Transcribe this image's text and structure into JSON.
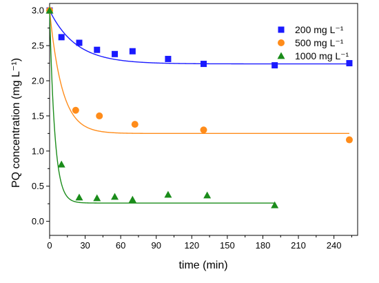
{
  "chart_data": {
    "type": "scatter",
    "xlabel": "time (min)",
    "ylabel": "PQ concentration (mg L⁻¹)",
    "xlim": [
      0,
      260
    ],
    "ylim": [
      -0.2,
      3.1
    ],
    "xticks": [
      0,
      30,
      60,
      90,
      120,
      150,
      180,
      210,
      240
    ],
    "yticks": [
      0.0,
      0.5,
      1.0,
      1.5,
      2.0,
      2.5,
      3.0
    ],
    "ytick_labels": [
      "0.0",
      "0.5",
      "1.0",
      "1.5",
      "2.0",
      "2.5",
      "3.0"
    ],
    "legend_position": "top-right",
    "series": [
      {
        "name": "200 mg L⁻¹",
        "marker": "square",
        "color": "#1a1aff",
        "x": [
          0,
          10,
          25,
          40,
          55,
          70,
          100,
          130,
          190,
          253
        ],
        "y": [
          3.0,
          2.62,
          2.54,
          2.44,
          2.38,
          2.42,
          2.31,
          2.24,
          2.22,
          2.25
        ],
        "fit": {
          "y_end": 2.24,
          "amplitude": 0.76,
          "rate": 0.045
        }
      },
      {
        "name": "500 mg L⁻¹",
        "marker": "circle",
        "color": "#ff8c1a",
        "x": [
          0,
          22,
          42,
          72,
          130,
          253
        ],
        "y": [
          3.0,
          1.58,
          1.5,
          1.38,
          1.3,
          1.16
        ],
        "fit": {
          "y_end": 1.25,
          "amplitude": 1.75,
          "rate": 0.095
        }
      },
      {
        "name": "1000 mg L⁻¹",
        "marker": "triangle",
        "color": "#1a8c1a",
        "x": [
          0,
          10,
          25,
          40,
          55,
          70,
          100,
          133,
          190
        ],
        "y": [
          3.0,
          0.81,
          0.34,
          0.33,
          0.35,
          0.31,
          0.38,
          0.37,
          0.23
        ],
        "fit": {
          "y_end": 0.26,
          "amplitude": 2.74,
          "rate": 0.23
        }
      }
    ]
  }
}
